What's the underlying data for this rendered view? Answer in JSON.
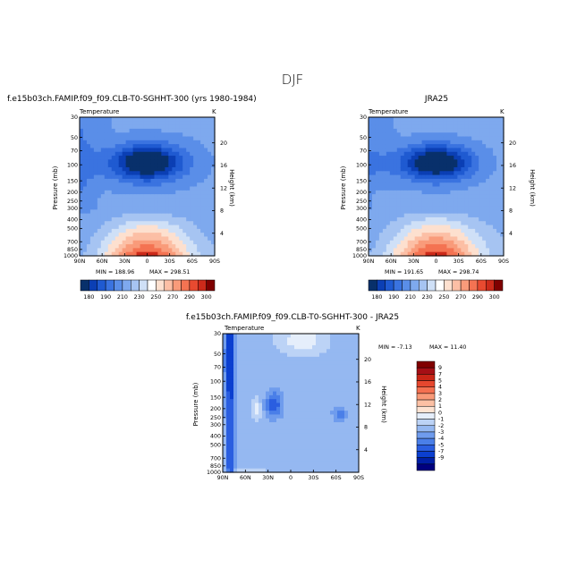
{
  "figure_title": "DJF",
  "colors": {
    "palette_cold_to_warm": [
      "#08306b",
      "#0b3fb4",
      "#1f5ad1",
      "#3a73e0",
      "#5a8ee8",
      "#7ea9ee",
      "#a6c4f2",
      "#cfe0f7",
      "#ffffff",
      "#fde0cf",
      "#fcbfa5",
      "#f99b7a",
      "#f47352",
      "#e84a30",
      "#cc2a1a",
      "#a50f15",
      "#7f0000"
    ],
    "diff_palette": [
      "#00007f",
      "#001fa6",
      "#0b3fd0",
      "#2a5ee0",
      "#4a7fe8",
      "#6f9ced",
      "#95b8f1",
      "#bcd3f6",
      "#e5eefb",
      "#fde3d2",
      "#fcc0a4",
      "#f99a78",
      "#f47050",
      "#e6472e",
      "#c82516",
      "#a50f15",
      "#800000"
    ]
  },
  "chart_data": [
    {
      "id": "model",
      "type": "heatmap",
      "title": "f.e15b03ch.FAMIP.f09_f09.CLB-T0-SGHHT-300 (yrs 1980-1984)",
      "variable_label": "Temperature",
      "units": "K",
      "xlabel": "",
      "ylabel": "Pressure (mb)",
      "y2label": "Height (km)",
      "x_ticks": [
        "90N",
        "60N",
        "30N",
        "0",
        "30S",
        "60S",
        "90S"
      ],
      "y_ticks": [
        "30",
        "50",
        "70",
        "100",
        "150",
        "200",
        "250",
        "300",
        "400",
        "500",
        "700",
        "850",
        "1000"
      ],
      "y2_ticks": [
        "20",
        "16",
        "12",
        "8",
        "4"
      ],
      "stats": {
        "min_label": "MIN = 188.96",
        "max_label": "MAX = 298.51",
        "min": 188.96,
        "max": 298.51
      },
      "colorbar_labels": [
        "180",
        "190",
        "210",
        "230",
        "250",
        "270",
        "290",
        "300"
      ]
    },
    {
      "id": "obs",
      "type": "heatmap",
      "title": "JRA25",
      "variable_label": "Temperature",
      "units": "K",
      "xlabel": "",
      "ylabel": "Pressure (mb)",
      "y2label": "Height (km)",
      "x_ticks": [
        "90N",
        "60N",
        "30N",
        "0",
        "30S",
        "60S",
        "90S"
      ],
      "y_ticks": [
        "30",
        "50",
        "70",
        "100",
        "150",
        "200",
        "250",
        "300",
        "400",
        "500",
        "700",
        "850",
        "1000"
      ],
      "y2_ticks": [
        "20",
        "16",
        "12",
        "8",
        "4"
      ],
      "stats": {
        "min_label": "MIN = 191.65",
        "max_label": "MAX = 298.74",
        "min": 191.65,
        "max": 298.74
      },
      "colorbar_labels": [
        "180",
        "190",
        "210",
        "230",
        "250",
        "270",
        "290",
        "300"
      ]
    },
    {
      "id": "diff",
      "type": "heatmap",
      "title": "f.e15b03ch.FAMIP.f09_f09.CLB-T0-SGHHT-300 - JRA25",
      "variable_label": "Temperature",
      "units": "K",
      "xlabel": "",
      "ylabel": "Pressure (mb)",
      "y2label": "Height (km)",
      "x_ticks": [
        "90N",
        "60N",
        "30N",
        "0",
        "30S",
        "60S",
        "90S"
      ],
      "y_ticks": [
        "30",
        "50",
        "70",
        "100",
        "150",
        "200",
        "250",
        "300",
        "400",
        "500",
        "700",
        "850",
        "1000"
      ],
      "y2_ticks": [
        "20",
        "16",
        "12",
        "8",
        "4"
      ],
      "stats": {
        "min_label": "MIN = -7.13",
        "max_label": "MAX = 11.40",
        "min": -7.13,
        "max": 11.4
      },
      "colorbar_labels": [
        "9",
        "7",
        "5",
        "4",
        "3",
        "2",
        "1",
        "0",
        "-1",
        "-2",
        "-3",
        "-4",
        "-5",
        "-7",
        "-9"
      ]
    }
  ]
}
